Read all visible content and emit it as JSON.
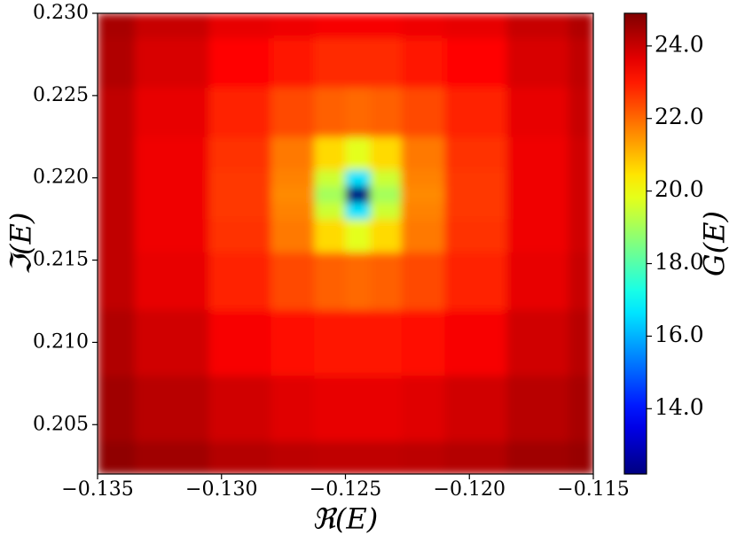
{
  "chart_data": {
    "type": "heatmap",
    "xlabel": "ℜ(E)",
    "ylabel": "ℑ(E)",
    "colorbar_label": "G(E)",
    "colormap": "jet",
    "x": [
      -0.135,
      -0.132,
      -0.129,
      -0.127,
      -0.1255,
      -0.1245,
      -0.1235,
      -0.122,
      -0.12,
      -0.117,
      -0.115
    ],
    "y": [
      0.202,
      0.206,
      0.21,
      0.214,
      0.217,
      0.218,
      0.219,
      0.22,
      0.221,
      0.224,
      0.227,
      0.23
    ],
    "z": [
      [
        24.7,
        24.5,
        24.25,
        24.15,
        24.1,
        24.1,
        24.1,
        24.15,
        24.25,
        24.5,
        24.6
      ],
      [
        24.5,
        24.2,
        23.9,
        23.7,
        23.6,
        23.6,
        23.6,
        23.7,
        23.9,
        24.2,
        24.4
      ],
      [
        24.3,
        23.9,
        23.4,
        23.1,
        23.0,
        23.0,
        23.0,
        23.1,
        23.4,
        23.9,
        24.2
      ],
      [
        24.1,
        23.6,
        22.9,
        22.4,
        22.1,
        22.0,
        22.1,
        22.4,
        22.9,
        23.6,
        24.0
      ],
      [
        24.1,
        23.5,
        22.7,
        21.8,
        20.6,
        19.8,
        20.6,
        21.8,
        22.7,
        23.5,
        23.9
      ],
      [
        24.1,
        23.5,
        22.6,
        21.7,
        19.5,
        16.6,
        19.5,
        21.7,
        22.6,
        23.5,
        23.9
      ],
      [
        24.1,
        23.5,
        22.6,
        21.6,
        19.0,
        12.2,
        19.0,
        21.6,
        22.6,
        23.5,
        23.9
      ],
      [
        24.1,
        23.5,
        22.6,
        21.7,
        19.5,
        16.6,
        19.5,
        21.7,
        22.6,
        23.5,
        23.9
      ],
      [
        24.1,
        23.5,
        22.7,
        21.8,
        20.6,
        19.8,
        20.6,
        21.8,
        22.7,
        23.5,
        23.9
      ],
      [
        24.1,
        23.6,
        22.9,
        22.4,
        22.1,
        22.0,
        22.1,
        22.4,
        22.9,
        23.6,
        24.0
      ],
      [
        24.3,
        23.8,
        23.3,
        23.0,
        22.8,
        22.8,
        22.8,
        23.0,
        23.3,
        23.8,
        24.1
      ],
      [
        24.4,
        24.0,
        23.6,
        23.5,
        23.4,
        23.4,
        23.4,
        23.5,
        23.6,
        24.0,
        24.3
      ]
    ],
    "xlim": [
      -0.135,
      -0.115
    ],
    "ylim": [
      0.202,
      0.23
    ],
    "clim": [
      12.2,
      24.9
    ],
    "xticks": [
      {
        "value": -0.135,
        "label": "−0.135"
      },
      {
        "value": -0.13,
        "label": "−0.130"
      },
      {
        "value": -0.125,
        "label": "−0.125"
      },
      {
        "value": -0.12,
        "label": "−0.120"
      },
      {
        "value": -0.115,
        "label": "−0.115"
      }
    ],
    "yticks": [
      0.205,
      {
        "value": 0.21,
        "label": "0.210"
      },
      0.215,
      {
        "value": 0.22,
        "label": "0.220"
      },
      0.225,
      {
        "value": 0.23,
        "label": "0.230"
      }
    ],
    "cticks": [
      {
        "value": 14,
        "label": "14.0"
      },
      {
        "value": 16,
        "label": "16.0"
      },
      {
        "value": 18,
        "label": "18.0"
      },
      {
        "value": 20,
        "label": "20.0"
      },
      {
        "value": 22,
        "label": "22.0"
      },
      {
        "value": 24,
        "label": "24.0"
      }
    ]
  }
}
